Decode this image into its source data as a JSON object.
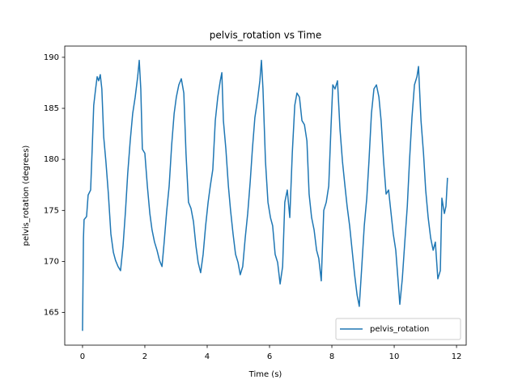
{
  "chart_data": {
    "type": "line",
    "title": "pelvis_rotation vs Time",
    "x_label": "Time (s)",
    "y_label": "pelvis_rotation (degrees)",
    "x": [
      0,
      0.03,
      0.05,
      0.13,
      0.18,
      0.26,
      0.31,
      0.36,
      0.42,
      0.47,
      0.52,
      0.57,
      0.62,
      0.68,
      0.75,
      0.83,
      0.91,
      0.99,
      1.06,
      1.14,
      1.22,
      1.3,
      1.38,
      1.45,
      1.53,
      1.61,
      1.69,
      1.77,
      1.82,
      1.87,
      1.92,
      2.0,
      2.08,
      2.16,
      2.23,
      2.31,
      2.39,
      2.47,
      2.55,
      2.62,
      2.7,
      2.78,
      2.86,
      2.94,
      3.01,
      3.09,
      3.17,
      3.25,
      3.32,
      3.4,
      3.48,
      3.56,
      3.64,
      3.71,
      3.79,
      3.87,
      3.95,
      4.03,
      4.1,
      4.18,
      4.26,
      4.34,
      4.42,
      4.47,
      4.52,
      4.6,
      4.68,
      4.75,
      4.83,
      4.91,
      4.99,
      5.06,
      5.14,
      5.22,
      5.3,
      5.38,
      5.45,
      5.53,
      5.61,
      5.69,
      5.74,
      5.79,
      5.87,
      5.95,
      6.03,
      6.1,
      6.18,
      6.26,
      6.34,
      6.42,
      6.49,
      6.57,
      6.65,
      6.73,
      6.81,
      6.88,
      6.96,
      7.04,
      7.12,
      7.2,
      7.27,
      7.35,
      7.43,
      7.51,
      7.58,
      7.66,
      7.74,
      7.82,
      7.9,
      7.97,
      8.03,
      8.1,
      8.18,
      8.26,
      8.34,
      8.42,
      8.49,
      8.57,
      8.65,
      8.73,
      8.81,
      8.88,
      8.96,
      9.04,
      9.12,
      9.19,
      9.27,
      9.35,
      9.43,
      9.51,
      9.58,
      9.66,
      9.74,
      9.82,
      9.9,
      9.97,
      10.05,
      10.13,
      10.18,
      10.26,
      10.34,
      10.42,
      10.49,
      10.57,
      10.65,
      10.73,
      10.78,
      10.86,
      10.94,
      11.01,
      11.09,
      11.17,
      11.25,
      11.32,
      11.4,
      11.48,
      11.53,
      11.61,
      11.66,
      11.71
    ],
    "series": [
      {
        "name": "pelvis_rotation",
        "color": "#1f77b4",
        "values": [
          163.2,
          172.3,
          174.1,
          174.4,
          176.5,
          177.0,
          181.0,
          185.3,
          186.9,
          188.1,
          187.7,
          188.3,
          186.9,
          182.2,
          179.8,
          176.6,
          172.7,
          170.9,
          170.1,
          169.5,
          169.1,
          171.5,
          175.0,
          178.6,
          181.8,
          184.5,
          186.1,
          188.1,
          189.7,
          186.9,
          181.0,
          180.6,
          177.4,
          174.7,
          173.1,
          171.9,
          171.1,
          170.1,
          169.5,
          171.9,
          174.9,
          177.4,
          181.4,
          184.5,
          186.1,
          187.3,
          187.9,
          186.5,
          180.6,
          175.8,
          175.2,
          173.9,
          171.5,
          169.9,
          168.9,
          170.7,
          173.5,
          175.8,
          177.4,
          179.0,
          183.8,
          186.1,
          187.7,
          188.5,
          183.8,
          181.0,
          177.4,
          175.0,
          172.7,
          170.7,
          169.9,
          168.7,
          169.5,
          172.3,
          174.7,
          177.8,
          181.0,
          184.1,
          185.7,
          187.7,
          189.7,
          186.9,
          179.8,
          175.8,
          174.3,
          173.5,
          170.7,
          169.9,
          167.8,
          169.5,
          175.8,
          177.0,
          174.3,
          180.6,
          185.3,
          186.5,
          186.1,
          183.8,
          183.4,
          181.8,
          176.6,
          174.3,
          173.1,
          171.1,
          170.3,
          168.1,
          175.0,
          175.8,
          177.4,
          183.0,
          187.3,
          186.9,
          187.7,
          183.0,
          179.8,
          177.4,
          175.4,
          173.5,
          171.1,
          168.7,
          166.7,
          165.6,
          169.5,
          173.5,
          176.2,
          179.8,
          184.5,
          186.9,
          187.3,
          186.1,
          183.8,
          179.8,
          176.6,
          177.0,
          174.7,
          172.7,
          171.1,
          167.9,
          165.8,
          168.3,
          171.9,
          175.4,
          179.8,
          184.1,
          187.3,
          188.1,
          189.1,
          183.8,
          180.6,
          177.0,
          174.3,
          172.3,
          171.1,
          171.9,
          168.3,
          169.1,
          176.2,
          174.7,
          175.4,
          178.2
        ]
      }
    ],
    "xlim": [
      -0.57,
      12.31
    ],
    "ylim": [
      161.8,
      191.1
    ],
    "xticks": [
      0,
      2,
      4,
      6,
      8,
      10,
      12
    ],
    "yticks": [
      165,
      170,
      175,
      180,
      185,
      190
    ],
    "grid": false,
    "legend": "lower right"
  }
}
